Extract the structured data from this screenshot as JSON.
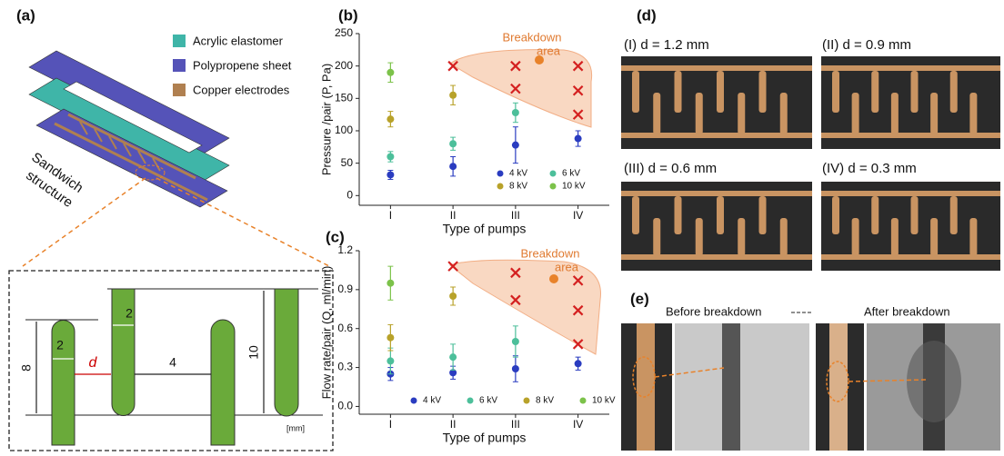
{
  "panel_labels": [
    "(a)",
    "(b)",
    "(c)",
    "(d)",
    "(e)"
  ],
  "panel_a": {
    "legend": [
      "Acrylic elastomer",
      "Polypropene sheet",
      "Copper electrodes"
    ],
    "structure_label": [
      "Sandwich",
      "structure"
    ],
    "dimensions": {
      "width_left": "2",
      "width_right": "2",
      "gap": "d",
      "spacing": "4",
      "height_short": "8",
      "height_long": "10",
      "unit": "[mm]"
    }
  },
  "chart_data": [
    {
      "type": "scatter",
      "categories": [
        "I",
        "II",
        "III",
        "IV"
      ],
      "x_label": "Type of pumps",
      "y_label": "Pressure /pair (P, Pa)",
      "ylim": [
        -15,
        250
      ],
      "yticks": [
        0,
        50,
        100,
        150,
        200,
        250
      ],
      "series": [
        {
          "name": "4 kV",
          "color": "#2a3cc0",
          "values": [
            32,
            45,
            78,
            88
          ],
          "errors": [
            7,
            15,
            28,
            12
          ]
        },
        {
          "name": "6 kV",
          "color": "#4cbf9a",
          "values": [
            60,
            80,
            128,
            null
          ],
          "errors": [
            8,
            10,
            15,
            null
          ]
        },
        {
          "name": "8 kV",
          "color": "#b8a22a",
          "values": [
            118,
            155,
            null,
            null
          ],
          "errors": [
            12,
            15,
            null,
            null
          ]
        },
        {
          "name": "10 kV",
          "color": "#7cc24a",
          "values": [
            190,
            null,
            null,
            null
          ],
          "errors": [
            15,
            null,
            null,
            null
          ]
        }
      ],
      "breakdown": {
        "categories": [
          "II",
          "III",
          "III",
          "IV",
          "IV",
          "IV"
        ],
        "values": [
          200,
          200,
          165,
          200,
          162,
          125
        ]
      },
      "annotation": [
        "Breakdown",
        "area"
      ]
    },
    {
      "type": "scatter",
      "categories": [
        "I",
        "II",
        "III",
        "IV"
      ],
      "x_label": "Type of pumps",
      "y_label": "Flow rate/pair (Q, ml/min)",
      "ylim": [
        -0.06,
        1.2
      ],
      "yticks": [
        {
          "value": 0,
          "label": "0.0"
        },
        0.3,
        0.6,
        0.9,
        1.2
      ],
      "series": [
        {
          "name": "4 kV",
          "color": "#2a3cc0",
          "values": [
            0.25,
            0.26,
            0.29,
            0.33
          ],
          "errors": [
            0.05,
            0.05,
            0.1,
            0.05
          ]
        },
        {
          "name": "6 kV",
          "color": "#4cbf9a",
          "values": [
            0.35,
            0.38,
            0.5,
            null
          ],
          "errors": [
            0.1,
            0.1,
            0.12,
            null
          ]
        },
        {
          "name": "8 kV",
          "color": "#b8a22a",
          "values": [
            0.53,
            0.85,
            null,
            null
          ],
          "errors": [
            0.1,
            0.07,
            null,
            null
          ]
        },
        {
          "name": "10 kV",
          "color": "#7cc24a",
          "values": [
            0.95,
            null,
            null,
            null
          ],
          "errors": [
            0.13,
            null,
            null,
            null
          ]
        }
      ],
      "breakdown": {
        "categories": [
          "II",
          "III",
          "III",
          "IV",
          "IV",
          "IV"
        ],
        "values": [
          1.08,
          1.03,
          0.82,
          0.97,
          0.74,
          0.48
        ]
      },
      "annotation": [
        "Breakdown",
        "area"
      ]
    }
  ],
  "panel_d": {
    "labels": [
      "(I) d = 1.2 mm",
      "(II) d = 0.9 mm",
      "(III) d = 0.6 mm",
      "(IV) d = 0.3 mm"
    ]
  },
  "panel_e": {
    "before": "Before breakdown",
    "after": "After breakdown"
  }
}
